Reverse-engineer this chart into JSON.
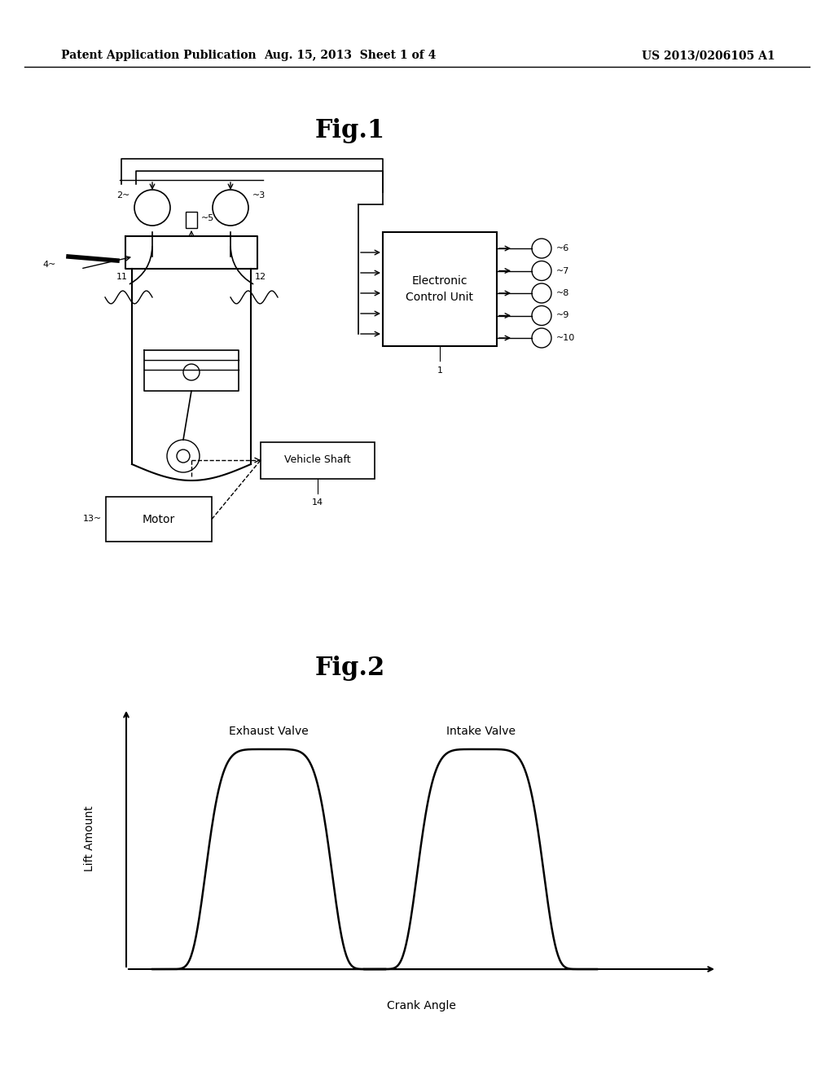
{
  "background_color": "#ffffff",
  "header_left": "Patent Application Publication",
  "header_center": "Aug. 15, 2013  Sheet 1 of 4",
  "header_right": "US 2013/0206105 A1",
  "fig1_title": "Fig.1",
  "fig2_title": "Fig.2",
  "fig2_xlabel": "Crank Angle",
  "fig2_ylabel": "Lift Amount",
  "exhaust_label": "Exhaust Valve",
  "intake_label": "Intake Valve",
  "ecu_line1": "Electronic",
  "ecu_line2": "Control Unit",
  "motor_label": "Motor",
  "vehicle_shaft_label": "Vehicle Shaft",
  "sensor_labels": [
    "6",
    "7",
    "8",
    "9",
    "10"
  ],
  "component_labels": {
    "injector": "4",
    "exhaust_cam": "2",
    "intake_cam": "3",
    "vvt": "5",
    "exhaust_port": "11",
    "intake_port": "12",
    "motor_num": "13",
    "vs_num": "14",
    "ecu_num": "1"
  }
}
